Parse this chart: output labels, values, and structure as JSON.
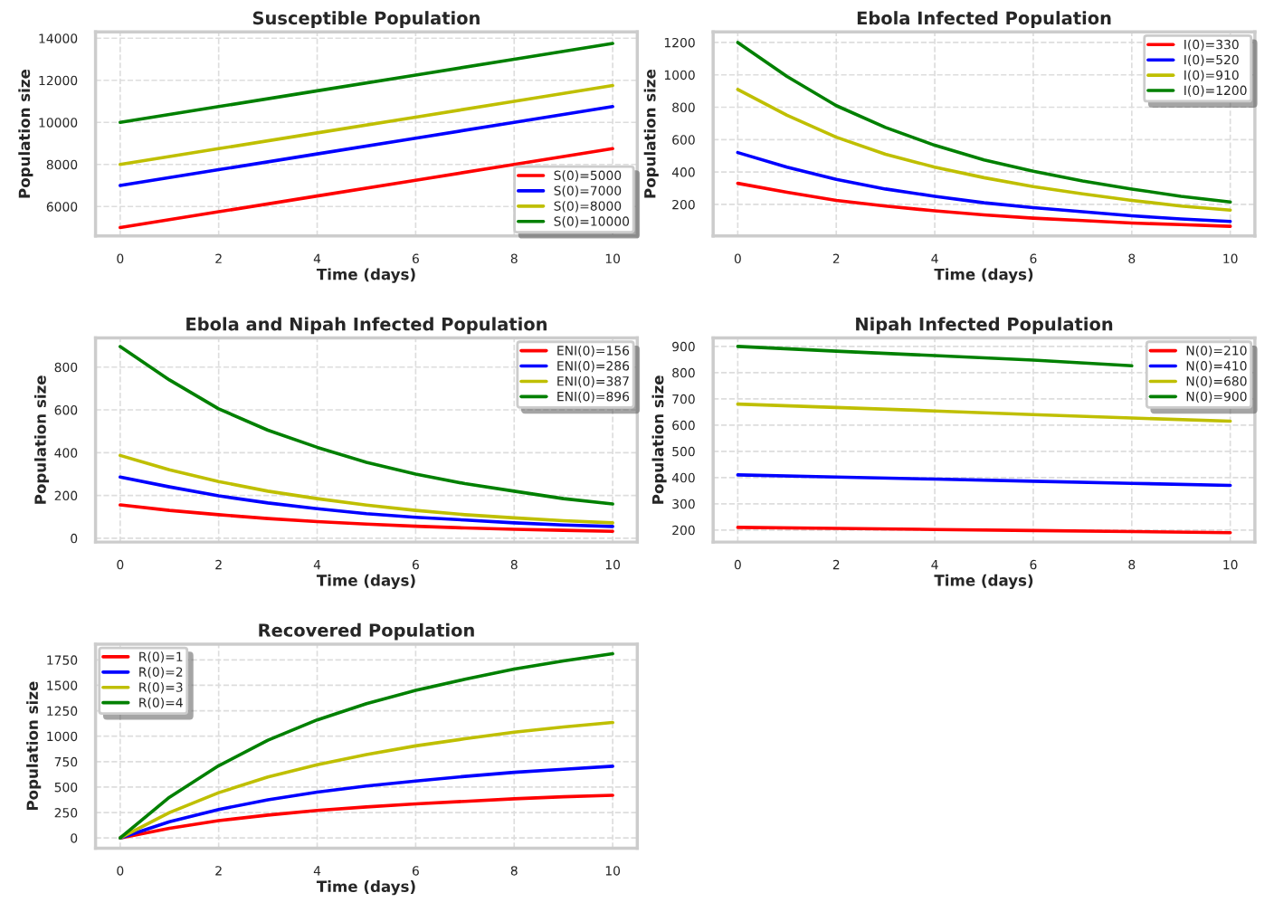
{
  "chart_data": [
    {
      "type": "line",
      "title": "Susceptible Population",
      "xlabel": "Time (days)",
      "ylabel": "Population size",
      "x": [
        0,
        2,
        4,
        6,
        8,
        10
      ],
      "xlim": [
        -0.5,
        10.5
      ],
      "xticks": [
        0,
        2,
        4,
        6,
        8,
        10
      ],
      "ylim": [
        4600,
        14300
      ],
      "yticks": [
        6000,
        8000,
        10000,
        12000,
        14000
      ],
      "grid": true,
      "legend": "lower right",
      "line_style": "solid",
      "series": [
        {
          "name": "S(0)=5000",
          "color": "#ff0000",
          "values": [
            5000,
            5750,
            6500,
            7250,
            8000,
            8750
          ]
        },
        {
          "name": "S(0)=7000",
          "color": "#0000ff",
          "values": [
            7000,
            7750,
            8500,
            9250,
            10000,
            10750
          ]
        },
        {
          "name": "S(0)=8000",
          "color": "#bfbf00",
          "values": [
            8000,
            8750,
            9500,
            10250,
            11000,
            11750
          ]
        },
        {
          "name": "S(0)=10000",
          "color": "#008000",
          "values": [
            10000,
            10750,
            11500,
            12250,
            13000,
            13750
          ]
        }
      ]
    },
    {
      "type": "line",
      "title": "Ebola Infected Population",
      "xlabel": "Time (days)",
      "ylabel": "Population size",
      "x": [
        0,
        1,
        2,
        3,
        4,
        5,
        6,
        7,
        8,
        9,
        10
      ],
      "xlim": [
        -0.5,
        10.5
      ],
      "xticks": [
        0,
        2,
        4,
        6,
        8,
        10
      ],
      "ylim": [
        5,
        1265
      ],
      "yticks": [
        200,
        400,
        600,
        800,
        1000,
        1200
      ],
      "grid": true,
      "legend": "upper right",
      "line_style": "solid",
      "series": [
        {
          "name": "I(0)=330",
          "color": "#ff0000",
          "values": [
            330,
            275,
            225,
            190,
            160,
            135,
            115,
            100,
            85,
            75,
            65
          ]
        },
        {
          "name": "I(0)=520",
          "color": "#0000ff",
          "values": [
            520,
            430,
            355,
            295,
            250,
            210,
            180,
            155,
            130,
            110,
            95
          ]
        },
        {
          "name": "I(0)=910",
          "color": "#bfbf00",
          "values": [
            910,
            750,
            615,
            510,
            430,
            365,
            310,
            265,
            225,
            190,
            165
          ]
        },
        {
          "name": "I(0)=1200",
          "color": "#008000",
          "values": [
            1200,
            990,
            810,
            675,
            565,
            475,
            405,
            345,
            295,
            250,
            215
          ]
        }
      ]
    },
    {
      "type": "line",
      "title": "Ebola and Nipah Infected Population",
      "xlabel": "Time (days)",
      "ylabel": "Population size",
      "x": [
        0,
        1,
        2,
        3,
        4,
        5,
        6,
        7,
        8,
        9,
        10
      ],
      "xlim": [
        -0.5,
        10.5
      ],
      "xticks": [
        0,
        2,
        4,
        6,
        8,
        10
      ],
      "ylim": [
        -18,
        936
      ],
      "yticks": [
        0,
        200,
        400,
        600,
        800
      ],
      "grid": true,
      "legend": "upper right",
      "line_style": "solid",
      "series": [
        {
          "name": "ENI(0)=156",
          "color": "#ff0000",
          "values": [
            156,
            130,
            110,
            92,
            78,
            66,
            56,
            48,
            42,
            37,
            32
          ]
        },
        {
          "name": "ENI(0)=286",
          "color": "#0000ff",
          "values": [
            286,
            240,
            198,
            165,
            138,
            115,
            98,
            85,
            72,
            62,
            55
          ]
        },
        {
          "name": "ENI(0)=387",
          "color": "#bfbf00",
          "values": [
            387,
            320,
            265,
            220,
            185,
            155,
            130,
            110,
            95,
            82,
            72
          ]
        },
        {
          "name": "ENI(0)=896",
          "color": "#008000",
          "values": [
            896,
            740,
            605,
            505,
            425,
            355,
            300,
            255,
            220,
            185,
            160
          ]
        }
      ]
    },
    {
      "type": "line",
      "title": "Nipah Infected Population",
      "xlabel": "Time (days)",
      "ylabel": "Population size",
      "x": [
        0,
        2,
        4,
        6,
        8,
        10
      ],
      "xlim": [
        -0.5,
        10.5
      ],
      "xticks": [
        0,
        2,
        4,
        6,
        8,
        10
      ],
      "ylim": [
        154,
        932
      ],
      "yticks": [
        200,
        300,
        400,
        500,
        600,
        700,
        800,
        900
      ],
      "grid": true,
      "legend": "upper right",
      "line_style": "solid",
      "series": [
        {
          "name": "N(0)=210",
          "color": "#ff0000",
          "values": [
            210,
            206,
            202,
            198,
            194,
            190
          ]
        },
        {
          "name": "N(0)=410",
          "color": "#0000ff",
          "values": [
            410,
            402,
            394,
            386,
            378,
            370
          ]
        },
        {
          "name": "N(0)=680",
          "color": "#bfbf00",
          "values": [
            680,
            667,
            654,
            640,
            627,
            615
          ]
        },
        {
          "name": "N(0)=900",
          "color": "#008000",
          "values": [
            900,
            882,
            865,
            848,
            826,
            null
          ]
        }
      ]
    },
    {
      "type": "line",
      "title": "Recovered Population",
      "xlabel": "Time (days)",
      "ylabel": "Population size",
      "x": [
        0,
        1,
        2,
        3,
        4,
        5,
        6,
        7,
        8,
        9,
        10
      ],
      "xlim": [
        -0.5,
        10.5
      ],
      "xticks": [
        0,
        2,
        4,
        6,
        8,
        10
      ],
      "ylim": [
        -100,
        1905
      ],
      "yticks": [
        0,
        250,
        500,
        750,
        1000,
        1250,
        1500,
        1750
      ],
      "grid": true,
      "legend": "upper left",
      "line_style": "solid",
      "series": [
        {
          "name": "R(0)=1",
          "color": "#ff0000",
          "values": [
            0,
            95,
            170,
            225,
            270,
            305,
            335,
            360,
            385,
            405,
            420
          ]
        },
        {
          "name": "R(0)=2",
          "color": "#0000ff",
          "values": [
            0,
            160,
            280,
            375,
            450,
            510,
            560,
            605,
            645,
            675,
            705
          ]
        },
        {
          "name": "R(0)=3",
          "color": "#bfbf00",
          "values": [
            0,
            250,
            445,
            600,
            720,
            820,
            905,
            975,
            1040,
            1090,
            1135
          ]
        },
        {
          "name": "R(0)=4",
          "color": "#008000",
          "values": [
            0,
            400,
            710,
            960,
            1160,
            1320,
            1450,
            1560,
            1660,
            1740,
            1810
          ]
        }
      ]
    }
  ]
}
